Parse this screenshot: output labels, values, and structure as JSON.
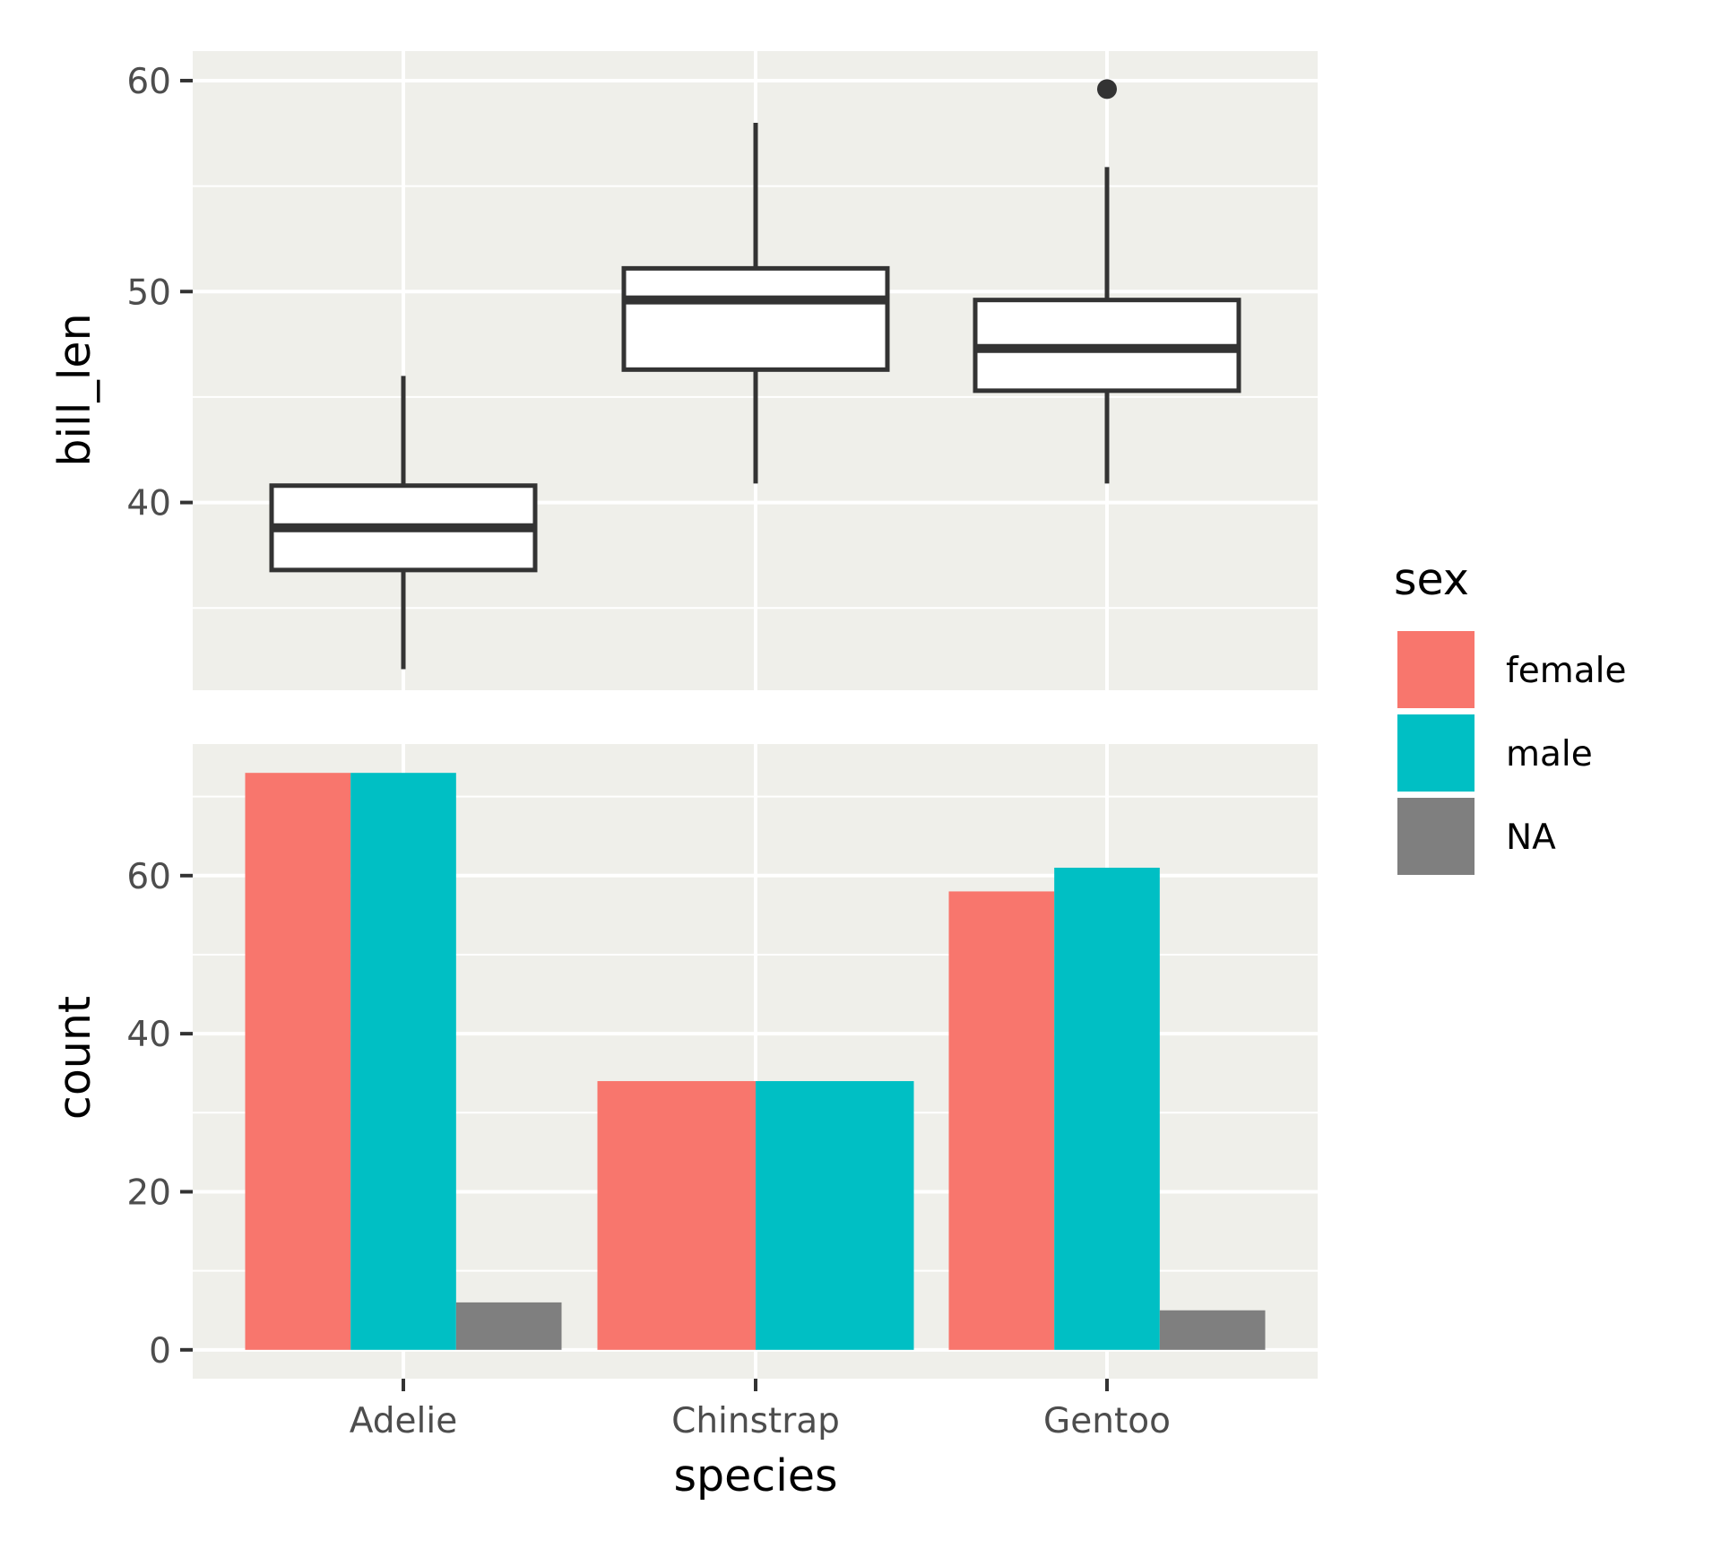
{
  "chart_data": [
    {
      "type": "box",
      "title": "",
      "xlabel": "",
      "ylabel": "bill_len",
      "categories": [
        "Adelie",
        "Chinstrap",
        "Gentoo"
      ],
      "ylim": [
        31.1,
        61.4
      ],
      "yticks": [
        40,
        50,
        60
      ],
      "yticks_minor": [
        35,
        45,
        55
      ],
      "boxes": [
        {
          "category": "Adelie",
          "whisker_low": 32.1,
          "q1": 36.8,
          "median": 38.8,
          "q3": 40.8,
          "whisker_high": 46.0,
          "outliers": []
        },
        {
          "category": "Chinstrap",
          "whisker_low": 40.9,
          "q1": 46.3,
          "median": 49.6,
          "q3": 51.1,
          "whisker_high": 58.0,
          "outliers": []
        },
        {
          "category": "Gentoo",
          "whisker_low": 40.9,
          "q1": 45.3,
          "median": 47.3,
          "q3": 49.6,
          "whisker_high": 55.9,
          "outliers": [
            59.6
          ]
        }
      ]
    },
    {
      "type": "bar",
      "title": "",
      "xlabel": "species",
      "ylabel": "count",
      "categories": [
        "Adelie",
        "Chinstrap",
        "Gentoo"
      ],
      "ylim": [
        -3.65,
        76.65
      ],
      "yticks": [
        0,
        20,
        40,
        60
      ],
      "yticks_minor": [
        10,
        30,
        50,
        70
      ],
      "position": "dodge",
      "series": [
        {
          "name": "female",
          "color": "#F8766D",
          "values": [
            73,
            34,
            58
          ]
        },
        {
          "name": "male",
          "color": "#00BFC4",
          "values": [
            73,
            34,
            61
          ]
        },
        {
          "name": "NA",
          "color": "#7F7F7F",
          "values": [
            6,
            null,
            5
          ]
        }
      ]
    }
  ],
  "legend": {
    "title": "sex",
    "items": [
      {
        "label": "female",
        "color": "#F8766D"
      },
      {
        "label": "male",
        "color": "#00BFC4"
      },
      {
        "label": "NA",
        "color": "#7F7F7F"
      }
    ]
  },
  "theme": {
    "panel_background": "#EFEFEA",
    "grid_color": "#FFFFFF",
    "box_line": "#333333",
    "box_fill": "#FFFFFF"
  }
}
